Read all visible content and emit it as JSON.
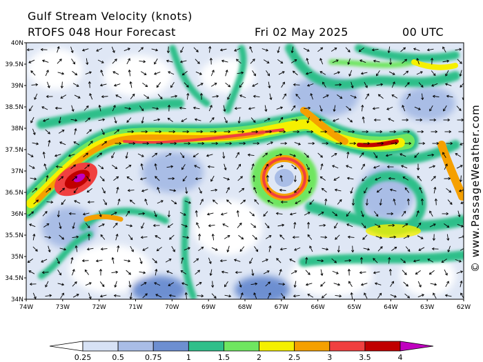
{
  "header": {
    "title": "Gulf Stream Velocity (knots)",
    "model": "RTOFS 048 Hour Forecast",
    "date": "Fri 02 May 2025",
    "time": "00 UTC"
  },
  "map": {
    "lat_labels": [
      "40N",
      "39.5N",
      "39N",
      "38.5N",
      "38N",
      "37.5N",
      "37N",
      "36.5N",
      "36N",
      "35.5N",
      "35N",
      "34.5N",
      "34N"
    ],
    "lon_labels": [
      "74W",
      "73W",
      "72W",
      "71W",
      "70W",
      "69W",
      "68W",
      "67W",
      "66W",
      "65W",
      "64W",
      "63W",
      "62W"
    ]
  },
  "legend": {
    "labels": [
      "0.25",
      "0.5",
      "0.75",
      "1",
      "1.5",
      "2",
      "2.5",
      "3",
      "3.5",
      "4"
    ],
    "colors": [
      "#ffffff",
      "#d7e2f5",
      "#a9bde6",
      "#6d8fd1",
      "#2fbf8a",
      "#6fe660",
      "#f5f000",
      "#f5a000",
      "#f04040",
      "#c00000",
      "#c000c0"
    ]
  },
  "credit": "© www.PassageWeather.com"
}
